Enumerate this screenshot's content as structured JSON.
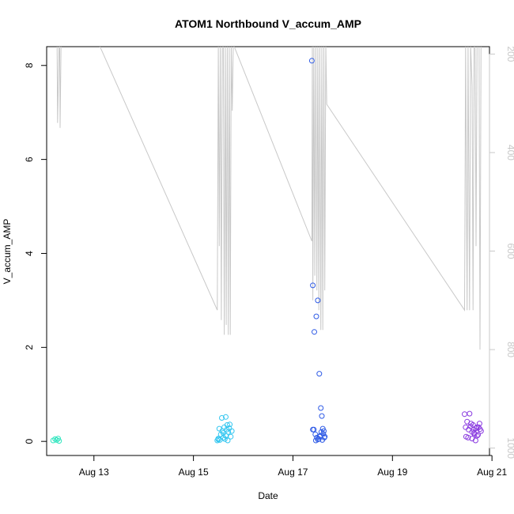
{
  "chart_data": {
    "type": "scatter",
    "title": "ATOM1 Northbound V_accum_AMP",
    "xlabel": "Date",
    "ylabel": "V_accum_AMP",
    "x_ticks": [
      "Aug 13",
      "Aug 15",
      "Aug 17",
      "Aug 19",
      "Aug 21"
    ],
    "x_tick_days": [
      13,
      15,
      17,
      19,
      21
    ],
    "xlim": [
      12.05,
      20.95
    ],
    "ylim": [
      -0.3,
      8.4
    ],
    "y_ticks": [
      0,
      2,
      4,
      6,
      8
    ],
    "y2_ticks": [
      200,
      400,
      600,
      800,
      1000
    ],
    "y2lim": [
      1015,
      185
    ],
    "point_colors": {
      "aug12": "#33e6c0",
      "aug15": "#33c6f0",
      "aug17": "#2f5be6",
      "aug20": "#8a3be0"
    },
    "line_color": "#c8c8c8",
    "series": [
      {
        "group": "aug12",
        "x": [
          12.18,
          12.22,
          12.25,
          12.28,
          12.3
        ],
        "y": [
          0.02,
          0.05,
          0.03,
          0.06,
          0.01
        ]
      },
      {
        "group": "aug15",
        "x": [
          15.48,
          15.5,
          15.52,
          15.55,
          15.57,
          15.58,
          15.6,
          15.62,
          15.63,
          15.65,
          15.67,
          15.68,
          15.7,
          15.72,
          15.73,
          15.75,
          15.77,
          15.5,
          15.53,
          15.6,
          15.65,
          15.69
        ],
        "y": [
          0.02,
          0.04,
          0.27,
          0.15,
          0.5,
          0.22,
          0.18,
          0.3,
          0.05,
          0.52,
          0.25,
          0.35,
          0.2,
          0.28,
          0.36,
          0.1,
          0.22,
          0.06,
          0.03,
          0.08,
          0.12,
          0.02
        ]
      },
      {
        "group": "aug17",
        "x": [
          17.38,
          17.4,
          17.43,
          17.47,
          17.5,
          17.53,
          17.56,
          17.58,
          17.6,
          17.62,
          17.64,
          17.42,
          17.45,
          17.48,
          17.52,
          17.55,
          17.57,
          17.59,
          17.61,
          17.63,
          17.4,
          17.46,
          17.5,
          17.54
        ],
        "y": [
          8.1,
          3.32,
          2.33,
          2.66,
          3.0,
          1.44,
          0.71,
          0.54,
          0.27,
          0.22,
          0.1,
          0.25,
          0.15,
          0.08,
          0.05,
          0.12,
          0.2,
          0.03,
          0.16,
          0.08,
          0.25,
          0.02,
          0.04,
          0.1
        ]
      },
      {
        "group": "aug20",
        "x": [
          20.45,
          20.47,
          20.5,
          20.53,
          20.55,
          20.58,
          20.6,
          20.62,
          20.65,
          20.68,
          20.7,
          20.73,
          20.75,
          20.78,
          20.48,
          20.52,
          20.57,
          20.63,
          20.67,
          20.72,
          20.76,
          20.6,
          20.64,
          20.7
        ],
        "y": [
          0.58,
          0.3,
          0.42,
          0.25,
          0.59,
          0.38,
          0.2,
          0.35,
          0.15,
          0.28,
          0.12,
          0.3,
          0.38,
          0.22,
          0.1,
          0.08,
          0.32,
          0.25,
          0.02,
          0.14,
          0.26,
          0.06,
          0.18,
          0.3
        ]
      }
    ],
    "secondary_line": {
      "x": [
        12.25,
        12.26,
        12.27,
        12.3,
        12.31,
        12.32,
        12.34,
        13.1,
        15.48,
        15.5,
        15.52,
        15.54,
        15.56,
        15.58,
        15.6,
        15.62,
        15.64,
        15.66,
        15.68,
        15.7,
        15.72,
        15.74,
        15.76,
        15.78,
        15.8,
        17.38,
        17.39,
        17.4,
        17.42,
        17.44,
        17.46,
        17.48,
        17.5,
        17.52,
        17.54,
        17.56,
        17.58,
        17.6,
        17.62,
        17.64,
        17.66,
        17.68,
        20.45,
        20.47,
        20.5,
        20.52,
        20.55,
        20.57,
        20.6,
        20.62,
        20.64,
        20.66,
        20.68,
        20.7,
        20.72,
        20.74,
        20.76,
        20.78,
        20.8
      ],
      "y": [
        180,
        180,
        340,
        180,
        180,
        350,
        180,
        180,
        720,
        180,
        590,
        180,
        740,
        180,
        180,
        770,
        180,
        750,
        180,
        770,
        180,
        770,
        180,
        315,
        180,
        580,
        180,
        700,
        180,
        650,
        180,
        680,
        180,
        720,
        180,
        760,
        180,
        760,
        180,
        680,
        180,
        302,
        720,
        180,
        720,
        180,
        720,
        180,
        265,
        720,
        180,
        180,
        590,
        180,
        180,
        180,
        800,
        180,
        180
      ]
    }
  }
}
